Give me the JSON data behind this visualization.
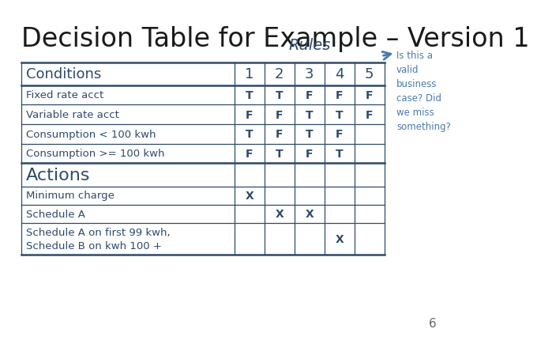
{
  "title": "Decision Table for Example – Version 1",
  "title_fontsize": 24,
  "title_fontweight": "normal",
  "title_color": "#1a1a1a",
  "bg_color": "#ffffff",
  "table_color": "#2e4a6b",
  "rules_label": "Rules",
  "rules_cols": [
    "1",
    "2",
    "3",
    "4",
    "5"
  ],
  "conditions_label": "Conditions",
  "actions_label": "Actions",
  "conditions": [
    "Fixed rate acct",
    "Variable rate acct",
    "Consumption < 100 kwh",
    "Consumption >= 100 kwh"
  ],
  "actions": [
    "Minimum charge",
    "Schedule A",
    "Schedule A on first 99 kwh,\nSchedule B on kwh 100 +"
  ],
  "condition_data": [
    [
      "T",
      "T",
      "F",
      "F",
      "F"
    ],
    [
      "F",
      "F",
      "T",
      "T",
      "F"
    ],
    [
      "T",
      "F",
      "T",
      "F",
      ""
    ],
    [
      "F",
      "T",
      "F",
      "T",
      ""
    ]
  ],
  "action_data": [
    [
      "X",
      "",
      "",
      "",
      ""
    ],
    [
      "",
      "X",
      "X",
      "",
      ""
    ],
    [
      "",
      "",
      "",
      "X",
      ""
    ]
  ],
  "annotation_text": "Is this a\nvalid\nbusiness\ncase? Did\nwe miss\nsomething?",
  "annotation_color": "#4a7aac",
  "annotation_arrow_color": "#4a7aac",
  "page_number": "6"
}
